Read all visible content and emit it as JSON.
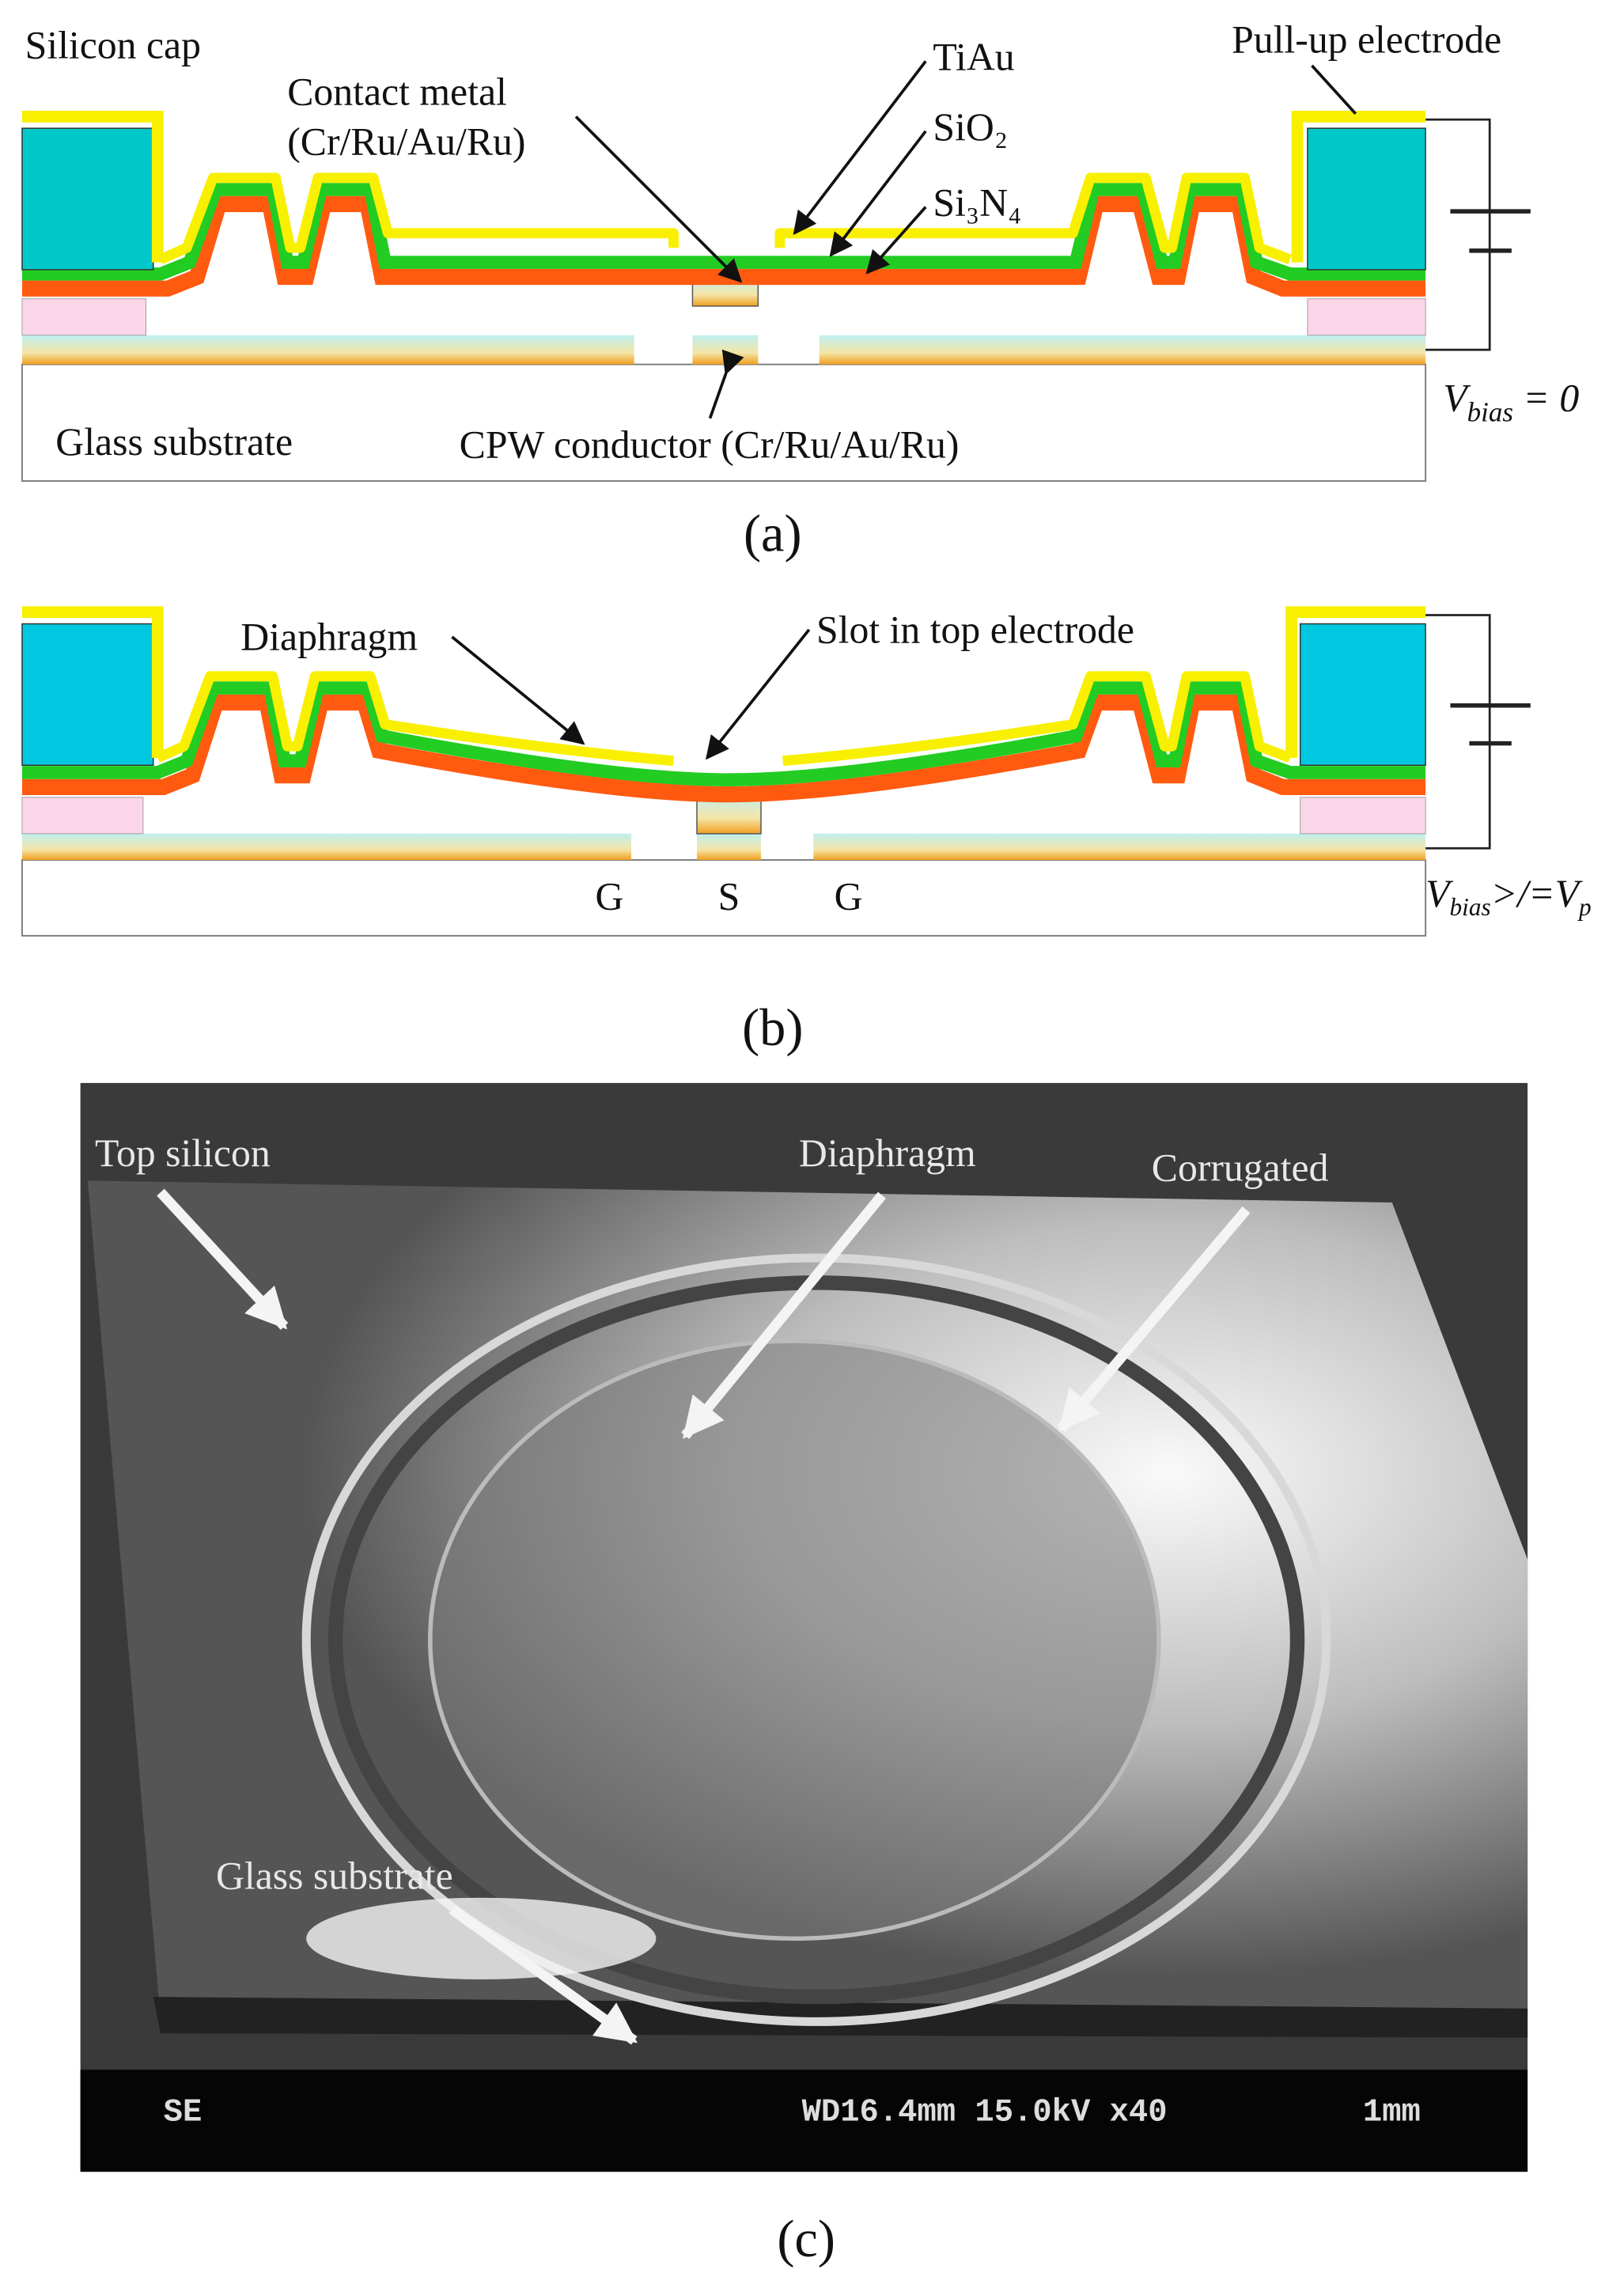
{
  "panel_a": {
    "silicon_cap": "Silicon cap",
    "contact_metal": "Contact metal",
    "contact_metal_layers": "(Cr/Ru/Au/Ru)",
    "tiau": "TiAu",
    "sio2": "SiO₂",
    "si3n4": "Si₃N₄",
    "pull_up_electrode": "Pull-up electrode",
    "glass_substrate": "Glass substrate",
    "cpw_conductor": "CPW conductor (Cr/Ru/Au/Ru)",
    "bias": {
      "symbol": "V",
      "subscript": "bias",
      "rest": " = 0"
    },
    "caption": "(a)"
  },
  "panel_b": {
    "diaphragm": "Diaphragm",
    "slot": "Slot in top electrode",
    "ground_left": "G",
    "signal": "S",
    "ground_right": "G",
    "bias": {
      "symbol": "V",
      "subscript": "bias",
      "rest": ">/=V",
      "rest_subscript": "p"
    },
    "caption": "(b)"
  },
  "panel_c": {
    "top_silicon": "Top silicon",
    "diaphragm": "Diaphragm",
    "corrugated": "Corrugated",
    "glass_substrate": "Glass substrate",
    "detector": "SE",
    "settings": "WD16.4mm 15.0kV x40",
    "scale": "1mm",
    "caption": "(c)"
  }
}
